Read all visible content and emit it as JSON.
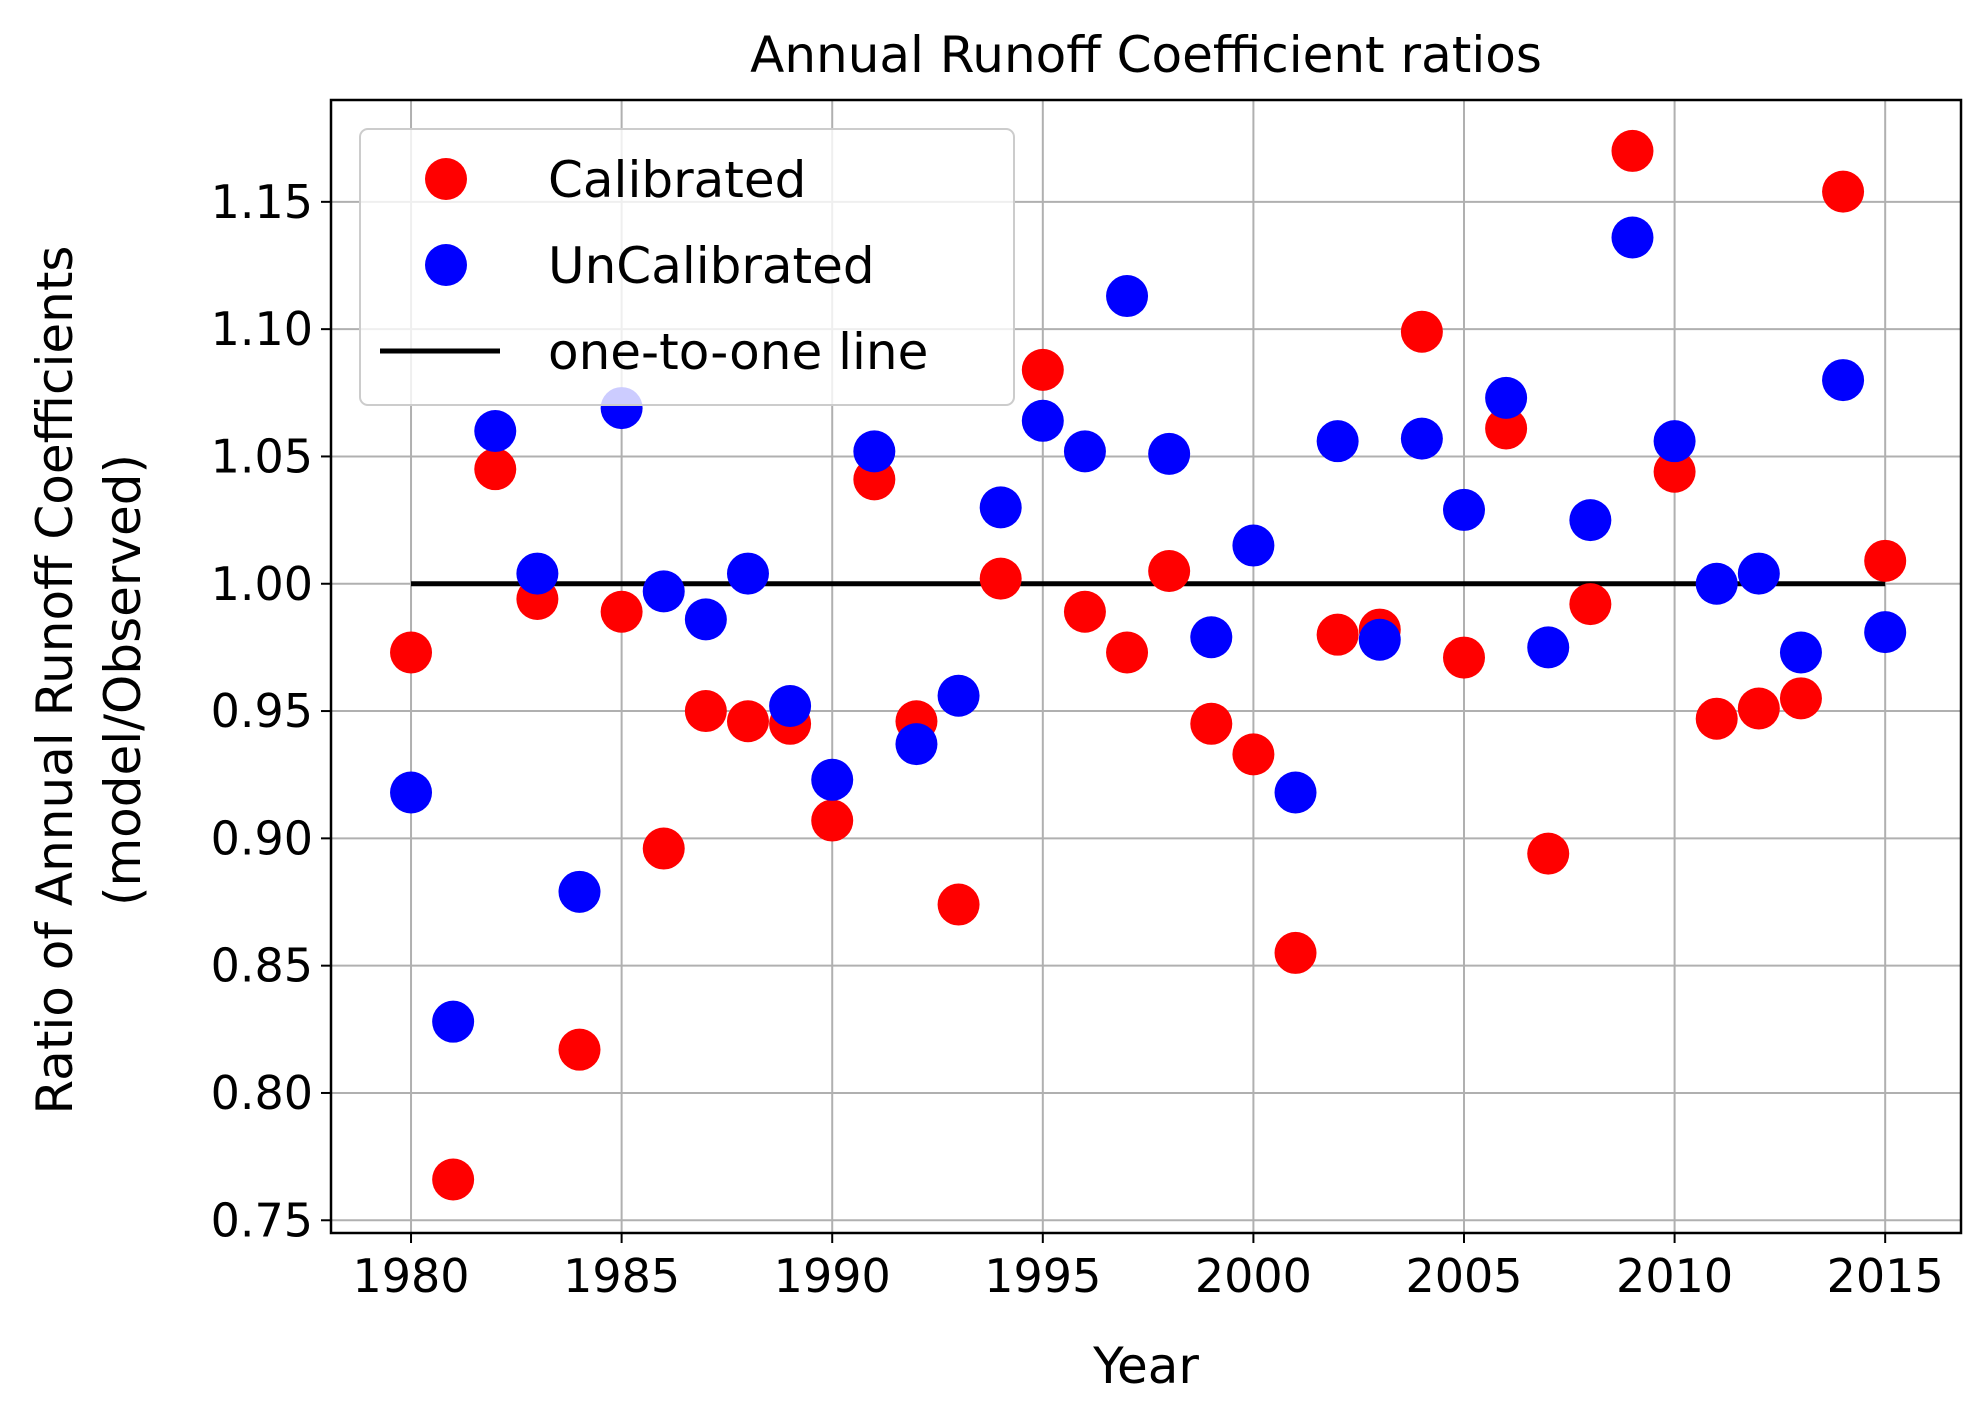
{
  "chart_data": {
    "type": "scatter",
    "title": "Annual Runoff Coefficient ratios",
    "xlabel": "Year",
    "ylabel_line1": "Ratio of Annual Runoff Coefficients",
    "ylabel_line2": "(model/Observed)",
    "xlim": [
      1978.1,
      2016.8
    ],
    "ylim": [
      0.745,
      1.19
    ],
    "grid": true,
    "legend_position": "upper-left",
    "x_ticks": [
      1980,
      1985,
      1990,
      1995,
      2000,
      2005,
      2010,
      2015
    ],
    "x_tick_labels": [
      "1980",
      "1985",
      "1990",
      "1995",
      "2000",
      "2005",
      "2010",
      "2015"
    ],
    "y_ticks": [
      0.75,
      0.8,
      0.85,
      0.9,
      0.95,
      1.0,
      1.05,
      1.1,
      1.15
    ],
    "y_tick_labels": [
      "0.75",
      "0.80",
      "0.85",
      "0.90",
      "0.95",
      "1.00",
      "1.05",
      "1.10",
      "1.15"
    ],
    "x": [
      1980,
      1981,
      1982,
      1983,
      1984,
      1985,
      1986,
      1987,
      1988,
      1989,
      1990,
      1991,
      1992,
      1993,
      1994,
      1995,
      1996,
      1997,
      1998,
      1999,
      2000,
      2001,
      2002,
      2003,
      2004,
      2005,
      2006,
      2007,
      2008,
      2009,
      2010,
      2011,
      2012,
      2013,
      2014,
      2015
    ],
    "series": [
      {
        "name": "Calibrated",
        "color": "#ff0000",
        "marker": "circle",
        "values": [
          0.973,
          0.766,
          1.045,
          0.994,
          0.817,
          0.989,
          0.896,
          0.95,
          0.946,
          0.945,
          0.907,
          1.041,
          0.946,
          0.874,
          1.002,
          1.084,
          0.989,
          0.973,
          1.005,
          0.945,
          0.933,
          0.855,
          0.98,
          0.982,
          1.099,
          0.971,
          1.061,
          0.894,
          0.992,
          1.17,
          1.044,
          0.947,
          0.951,
          0.955,
          1.154,
          1.009
        ]
      },
      {
        "name": "UnCalibrated",
        "color": "#0000ff",
        "marker": "circle",
        "values": [
          0.918,
          0.828,
          1.06,
          1.004,
          0.879,
          1.069,
          0.997,
          0.986,
          1.004,
          0.952,
          0.923,
          1.052,
          0.937,
          0.956,
          1.03,
          1.064,
          1.052,
          1.113,
          1.051,
          0.979,
          1.015,
          0.918,
          1.056,
          0.978,
          1.057,
          1.029,
          1.073,
          0.975,
          1.025,
          1.136,
          1.056,
          1.0,
          1.004,
          0.973,
          1.08,
          0.981
        ]
      }
    ],
    "reference_line": {
      "name": "one-to-one line",
      "color": "#000000",
      "x": [
        1980,
        2015
      ],
      "y": [
        1.0,
        1.0
      ]
    }
  }
}
